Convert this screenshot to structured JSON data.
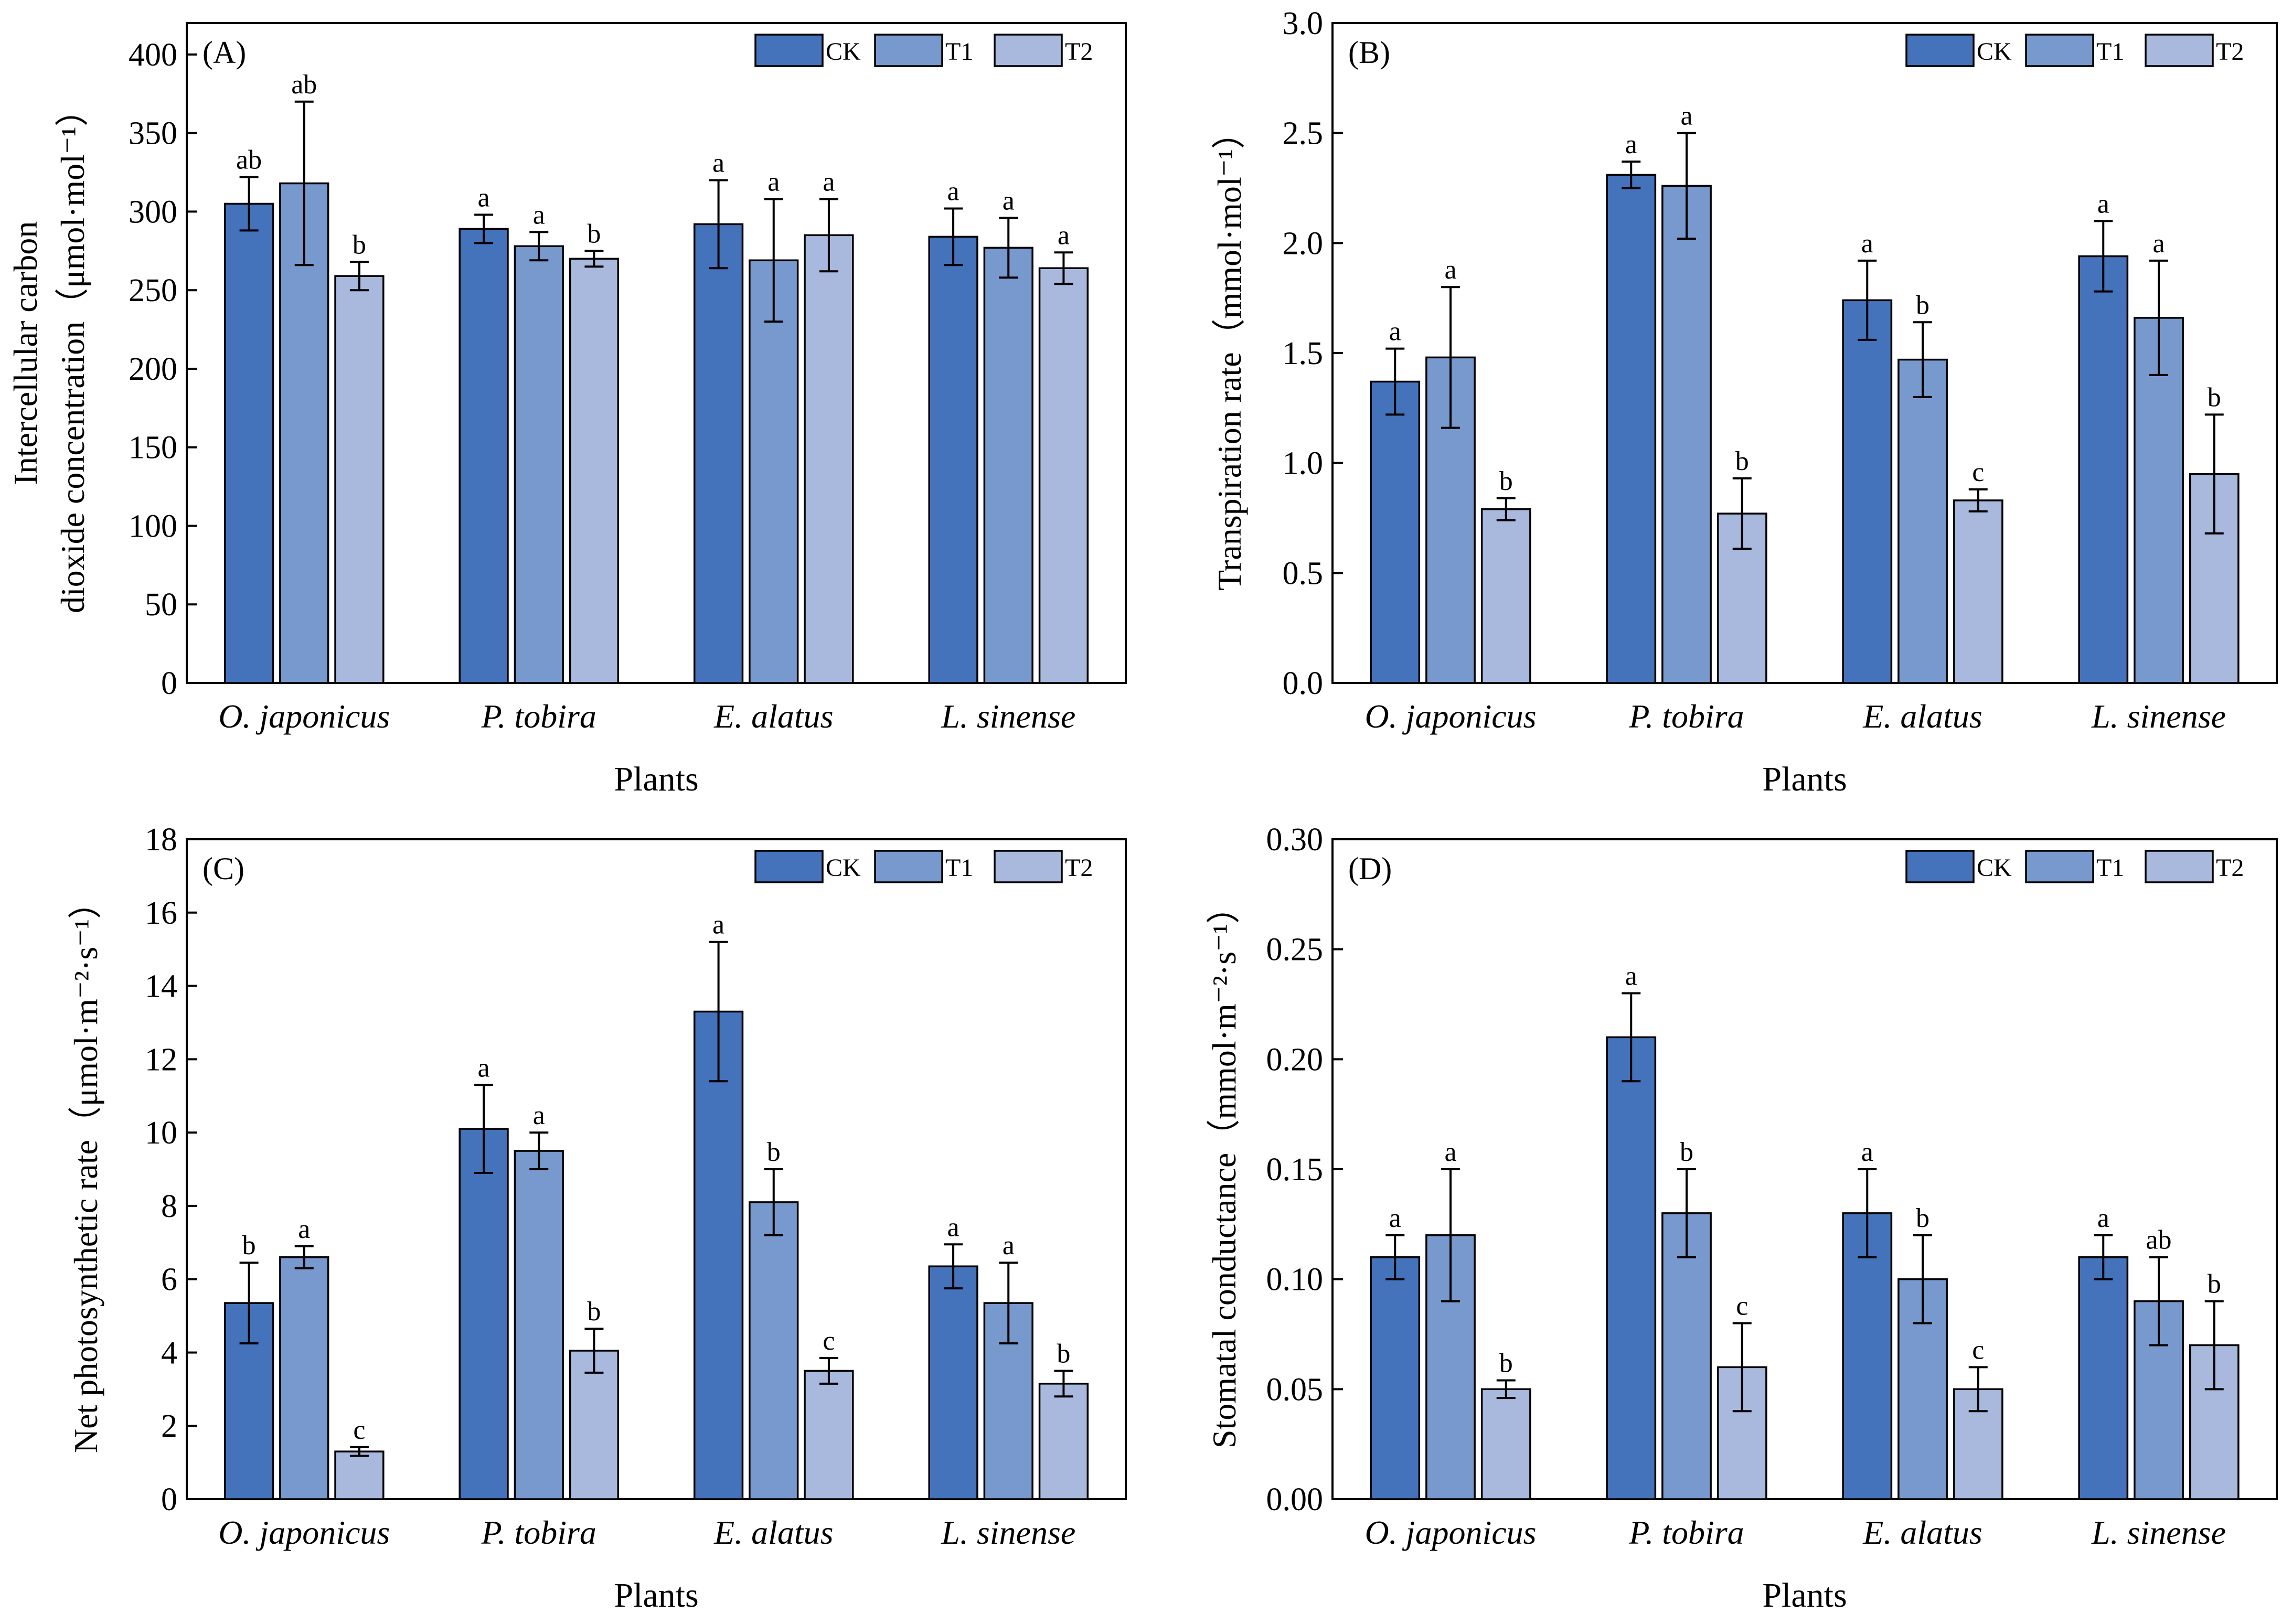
{
  "colors": {
    "CK": "#4472bb",
    "T1": "#7899cd",
    "T2": "#a9b9de"
  },
  "chart_data": [
    {
      "type": "bar",
      "panel_label": "(A)",
      "categories": [
        "O. japonicus",
        "P. tobira",
        "E. alatus",
        "L. sinense"
      ],
      "series": [
        {
          "name": "CK",
          "values": [
            305,
            289,
            292,
            284
          ],
          "errors": [
            17,
            9,
            28,
            18
          ],
          "labels": [
            "ab",
            "a",
            "a",
            "a"
          ]
        },
        {
          "name": "T1",
          "values": [
            318,
            278,
            269,
            277
          ],
          "errors": [
            52,
            9,
            39,
            19
          ],
          "labels": [
            "ab",
            "a",
            "a",
            "a"
          ]
        },
        {
          "name": "T2",
          "values": [
            259,
            270,
            285,
            264
          ],
          "errors": [
            9,
            5,
            23,
            10
          ],
          "labels": [
            "b",
            "b",
            "a",
            "a"
          ]
        }
      ],
      "xlabel": "Plants",
      "ylabel_lines": [
        "Intercellular carbon",
        "dioxide concentration（μmol·mol⁻¹）"
      ],
      "ylim": [
        0,
        420
      ],
      "yticks": [
        0,
        50,
        100,
        150,
        200,
        250,
        300,
        350,
        400
      ],
      "ytick_labels": [
        "0",
        "50",
        "100",
        "150",
        "200",
        "250",
        "300",
        "350",
        "400"
      ],
      "legend": "top-right"
    },
    {
      "type": "bar",
      "panel_label": "(B)",
      "categories": [
        "O. japonicus",
        "P. tobira",
        "E. alatus",
        "L. sinense"
      ],
      "series": [
        {
          "name": "CK",
          "values": [
            1.37,
            2.31,
            1.74,
            1.94
          ],
          "errors": [
            0.15,
            0.06,
            0.18,
            0.16
          ],
          "labels": [
            "a",
            "a",
            "a",
            "a"
          ]
        },
        {
          "name": "T1",
          "values": [
            1.48,
            2.26,
            1.47,
            1.66
          ],
          "errors": [
            0.32,
            0.24,
            0.17,
            0.26
          ],
          "labels": [
            "a",
            "a",
            "b",
            "a"
          ]
        },
        {
          "name": "T2",
          "values": [
            0.79,
            0.77,
            0.83,
            0.95
          ],
          "errors": [
            0.05,
            0.16,
            0.05,
            0.27
          ],
          "labels": [
            "b",
            "b",
            "c",
            "b"
          ]
        }
      ],
      "xlabel": "Plants",
      "ylabel_lines": [
        "Transpiration rate（mmol·mol⁻¹）"
      ],
      "ylim": [
        0,
        3.0
      ],
      "yticks": [
        0,
        0.5,
        1.0,
        1.5,
        2.0,
        2.5,
        3.0
      ],
      "ytick_labels": [
        "0.0",
        "0.5",
        "1.0",
        "1.5",
        "2.0",
        "2.5",
        "3.0"
      ],
      "legend": "top-right"
    },
    {
      "type": "bar",
      "panel_label": "(C)",
      "categories": [
        "O. japonicus",
        "P. tobira",
        "E. alatus",
        "L. sinense"
      ],
      "series": [
        {
          "name": "CK",
          "values": [
            5.35,
            10.1,
            13.3,
            6.35
          ],
          "errors": [
            1.1,
            1.2,
            1.9,
            0.6
          ],
          "labels": [
            "b",
            "a",
            "a",
            "a"
          ]
        },
        {
          "name": "T1",
          "values": [
            6.6,
            9.5,
            8.1,
            5.35
          ],
          "errors": [
            0.3,
            0.5,
            0.9,
            1.1
          ],
          "labels": [
            "a",
            "a",
            "b",
            "a"
          ]
        },
        {
          "name": "T2",
          "values": [
            1.3,
            4.05,
            3.5,
            3.15
          ],
          "errors": [
            0.12,
            0.6,
            0.35,
            0.35
          ],
          "labels": [
            "c",
            "b",
            "c",
            "b"
          ]
        }
      ],
      "xlabel": "Plants",
      "ylabel_lines": [
        "Net photosynthetic rate（μmol·m⁻²·s⁻¹）"
      ],
      "ylim": [
        0,
        18
      ],
      "yticks": [
        0,
        2,
        4,
        6,
        8,
        10,
        12,
        14,
        16,
        18
      ],
      "ytick_labels": [
        "0",
        "2",
        "4",
        "6",
        "8",
        "10",
        "12",
        "14",
        "16",
        "18"
      ],
      "legend": "top-right"
    },
    {
      "type": "bar",
      "panel_label": "(D)",
      "categories": [
        "O. japonicus",
        "P. tobira",
        "E. alatus",
        "L. sinense"
      ],
      "series": [
        {
          "name": "CK",
          "values": [
            0.11,
            0.21,
            0.13,
            0.11
          ],
          "errors": [
            0.01,
            0.02,
            0.02,
            0.01
          ],
          "labels": [
            "a",
            "a",
            "a",
            "a"
          ]
        },
        {
          "name": "T1",
          "values": [
            0.12,
            0.13,
            0.1,
            0.09
          ],
          "errors": [
            0.03,
            0.02,
            0.02,
            0.02
          ],
          "labels": [
            "a",
            "b",
            "b",
            "ab"
          ]
        },
        {
          "name": "T2",
          "values": [
            0.05,
            0.06,
            0.05,
            0.07
          ],
          "errors": [
            0.004,
            0.02,
            0.01,
            0.02
          ],
          "labels": [
            "b",
            "c",
            "c",
            "b"
          ]
        }
      ],
      "xlabel": "Plants",
      "ylabel_lines": [
        "Stomatal conductance（mmol·m⁻²·s⁻¹）"
      ],
      "ylim": [
        0,
        0.3
      ],
      "yticks": [
        0,
        0.05,
        0.1,
        0.15,
        0.2,
        0.25,
        0.3
      ],
      "ytick_labels": [
        "0.00",
        "0.05",
        "0.10",
        "0.15",
        "0.20",
        "0.25",
        "0.30"
      ],
      "legend": "top-right"
    }
  ]
}
